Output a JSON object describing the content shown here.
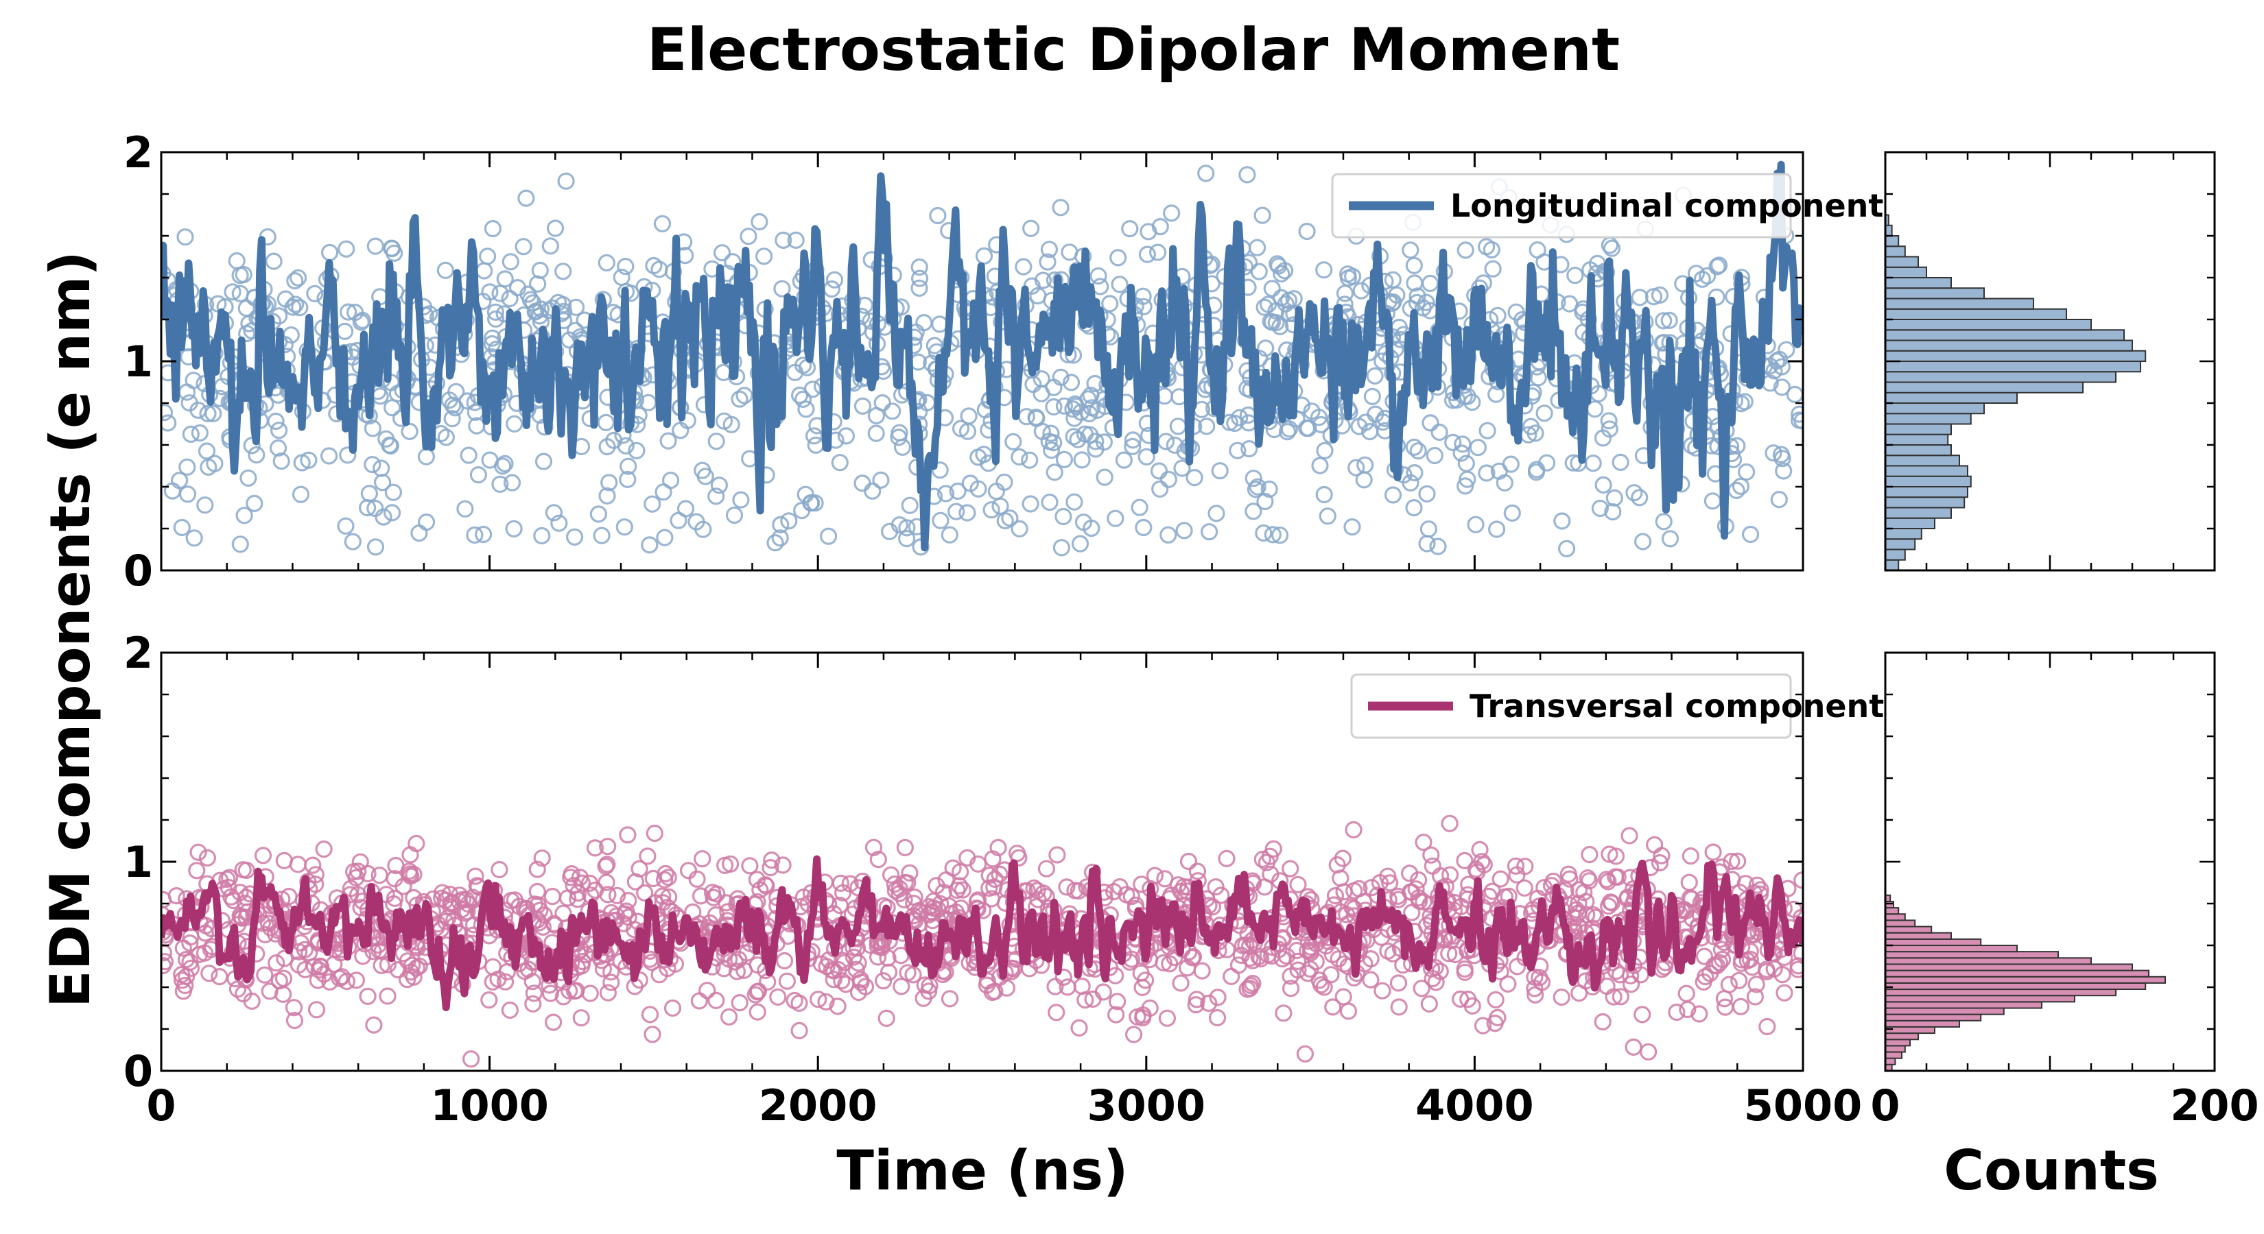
{
  "chart_data": {
    "title": "Electrostatic Dipolar Moment",
    "ylabel": "EDM components (e nm)",
    "xlabel_time": "Time (ns)",
    "xlabel_counts": "Counts",
    "time_xlim": [
      0,
      5000
    ],
    "time_xticks": [
      0,
      1000,
      2000,
      3000,
      4000,
      5000
    ],
    "counts_xlim": [
      0,
      200
    ],
    "counts_xticks": [
      0,
      200
    ],
    "ylim": [
      0,
      2
    ],
    "yticks": [
      0,
      1,
      2
    ],
    "panels": [
      {
        "type": "scatter+line",
        "legend": "Longitudinal component",
        "legend_position": "top-right",
        "color": "#4575a8",
        "scatter_color": "#8aa9ca",
        "mean": 1.08,
        "sd": 0.38,
        "smooth_mean": 1.06,
        "n_points": 1300,
        "histogram": {
          "bin_width": 0.05,
          "bin_start": 0.0,
          "counts": [
            8,
            12,
            18,
            22,
            30,
            40,
            48,
            50,
            52,
            50,
            45,
            40,
            38,
            40,
            52,
            60,
            80,
            120,
            140,
            155,
            158,
            150,
            145,
            125,
            110,
            90,
            60,
            40,
            25,
            20,
            12,
            8,
            4,
            2
          ]
        }
      },
      {
        "type": "scatter+line",
        "legend": "Transversal component",
        "legend_position": "top-right",
        "color": "#a93271",
        "scatter_color": "#cf7aa6",
        "mean": 0.66,
        "sd": 0.22,
        "smooth_mean": 0.67,
        "n_points": 1600,
        "histogram": {
          "bin_width": 0.03,
          "bin_start": 0.0,
          "counts": [
            4,
            6,
            10,
            12,
            15,
            20,
            30,
            45,
            58,
            72,
            95,
            115,
            140,
            158,
            170,
            160,
            150,
            125,
            105,
            80,
            58,
            40,
            28,
            18,
            12,
            8,
            5,
            3
          ]
        }
      }
    ]
  }
}
